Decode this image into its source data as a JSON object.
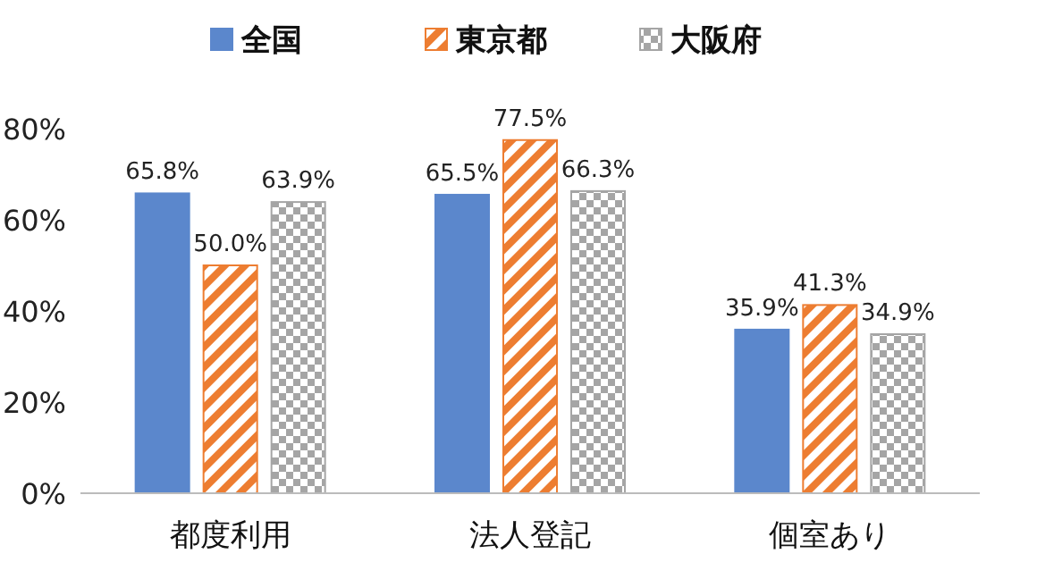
{
  "chart_data": {
    "type": "bar",
    "categories": [
      "都度利用",
      "法人登記",
      "個室あり"
    ],
    "series": [
      {
        "name": "全国",
        "color": "#5b87cc",
        "values": [
          65.8,
          65.5,
          35.9
        ],
        "value_labels": [
          "65.8%",
          "65.5%",
          "35.9%"
        ]
      },
      {
        "name": "東京都",
        "color": "#ed7d31",
        "values": [
          50.0,
          77.5,
          41.3
        ],
        "value_labels": [
          "50.0%",
          "77.5%",
          "41.3%"
        ]
      },
      {
        "name": "大阪府",
        "color": "#a5a5a5",
        "values": [
          63.9,
          66.3,
          34.9
        ],
        "value_labels": [
          "63.9%",
          "66.3%",
          "34.9%"
        ]
      }
    ],
    "ylim": [
      0,
      80
    ],
    "yticks": [
      {
        "value": 0,
        "label": "0%"
      },
      {
        "value": 20,
        "label": "20%"
      },
      {
        "value": 40,
        "label": "40%"
      },
      {
        "value": 60,
        "label": "60%"
      },
      {
        "value": 80,
        "label": "80%"
      }
    ],
    "legend": "top"
  }
}
